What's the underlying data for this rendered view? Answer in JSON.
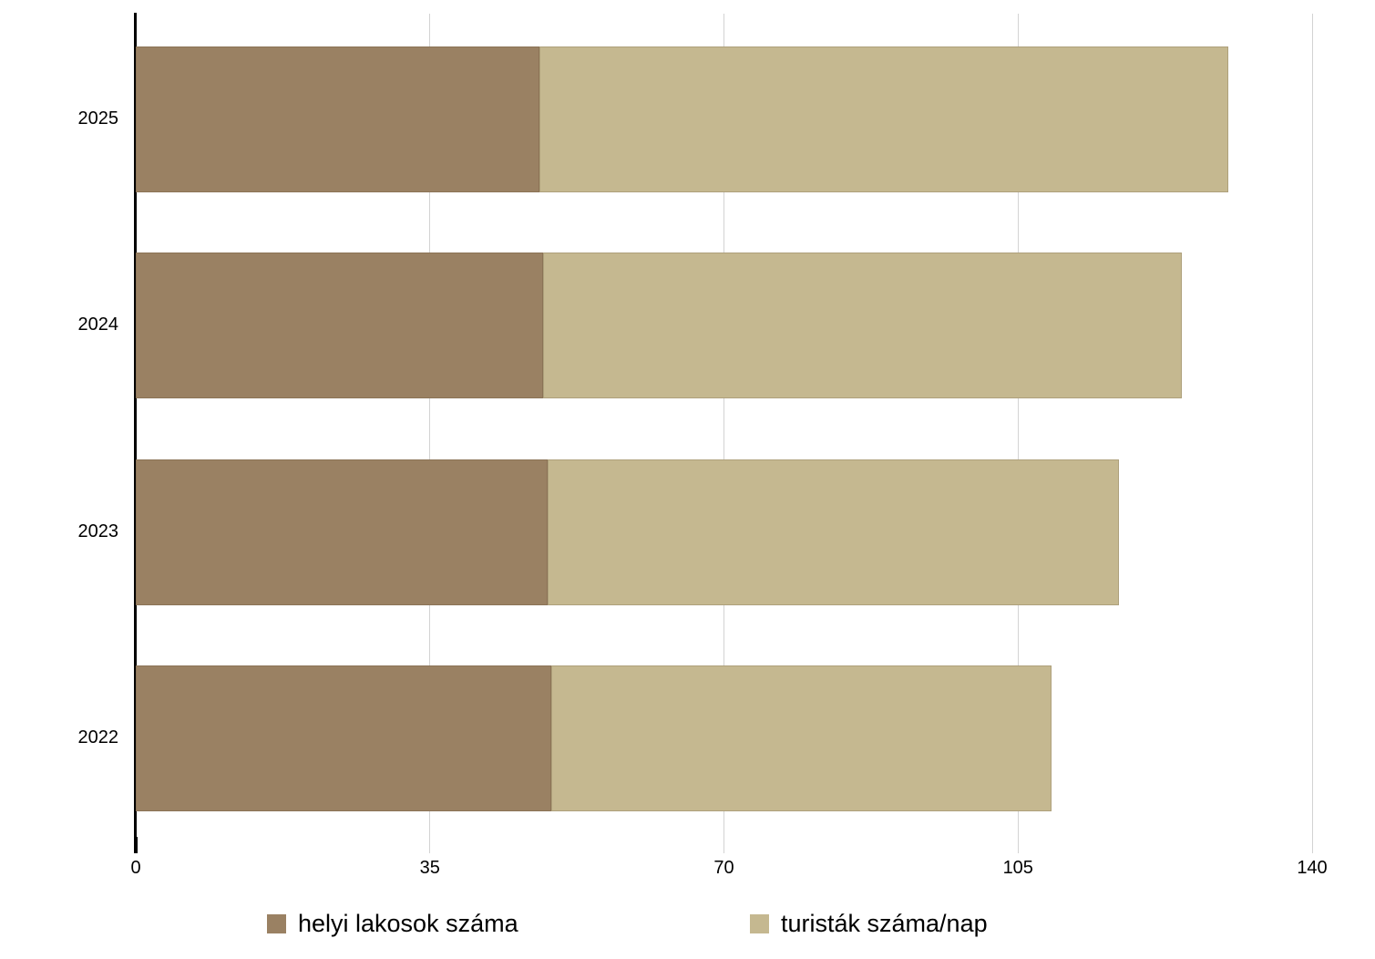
{
  "chart_data": {
    "type": "bar",
    "orientation": "horizontal",
    "stacked": true,
    "title": "",
    "categories": [
      "2025",
      "2024",
      "2023",
      "2022"
    ],
    "series": [
      {
        "name": "helyi lakosok száma",
        "color": "#9A8163",
        "values": [
          48,
          48.5,
          49,
          49.5
        ]
      },
      {
        "name": "turisták száma/nap",
        "color": "#C5B890",
        "values": [
          82,
          76,
          68,
          59.5
        ]
      }
    ],
    "totals": [
      130,
      124.5,
      117,
      109
    ],
    "xlim": [
      0,
      140
    ],
    "x_tick_values": [
      0,
      35,
      70,
      105,
      140
    ],
    "x_ticks": [
      "0",
      "35",
      "70",
      "105",
      "140"
    ],
    "xlabel": "",
    "ylabel": "",
    "grid": true,
    "legend_position": "bottom",
    "axis_color": "#000000",
    "gridline_color": "#D3D3D3",
    "text_color": "#000000",
    "background": "#FFFFFF"
  }
}
